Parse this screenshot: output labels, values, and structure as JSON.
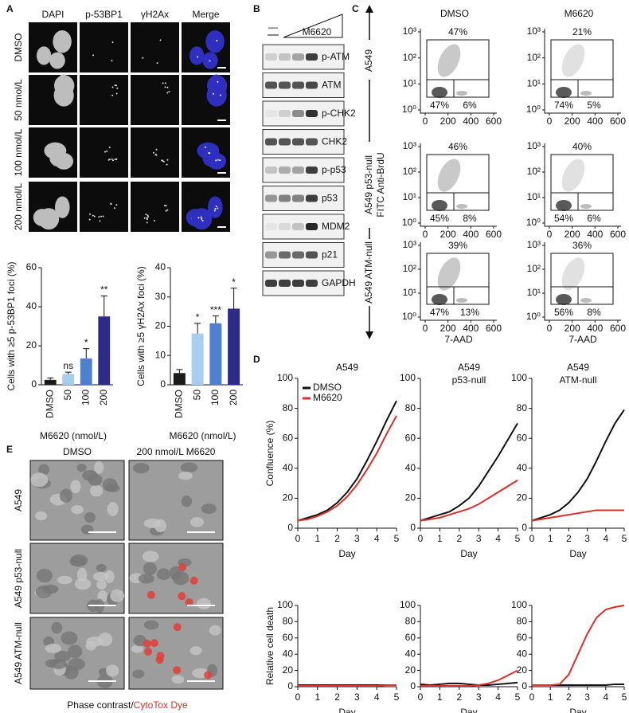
{
  "panel_labels": [
    "A",
    "B",
    "C",
    "D",
    "E"
  ],
  "panel_a": {
    "columns": [
      {
        "text": "DAPI",
        "color": "#5a55b8"
      },
      {
        "text": "p-53BP1",
        "color": "#e0504a"
      },
      {
        "text": "γH2Ax",
        "color": "#2e9e4f"
      },
      {
        "text": "Merge",
        "color": "#222222"
      }
    ],
    "rows": [
      "DMSO",
      "50 nmol/L",
      "100 nmol/L",
      "200 nmol/L"
    ]
  },
  "panel_b": {
    "control": "—",
    "treatment": "M6620",
    "proteins": [
      "p-ATM",
      "ATM",
      "p-CHK2",
      "CHK2",
      "p-p53",
      "p53",
      "MDM2",
      "p21",
      "GAPDH"
    ]
  },
  "panel_c": {
    "columns": [
      "DMSO",
      "M6620"
    ],
    "rows": [
      "A549",
      "A549 p53-null",
      "A549 ATM-null"
    ],
    "y_label": "FITC Anti-BrdU",
    "x_label": "7-AAD",
    "xticks": [
      "0",
      "200",
      "400",
      "600"
    ],
    "yticks": [
      "10⁰",
      "10¹",
      "10²",
      "10³"
    ],
    "gates": [
      [
        [
          "47%",
          "47%",
          "6%"
        ],
        [
          "21%",
          "74%",
          "5%"
        ]
      ],
      [
        [
          "46%",
          "45%",
          "8%"
        ],
        [
          "40%",
          "54%",
          "6%"
        ]
      ],
      [
        [
          "39%",
          "47%",
          "13%"
        ],
        [
          "36%",
          "56%",
          "8%"
        ]
      ]
    ]
  },
  "panel_e": {
    "columns": [
      "DMSO",
      "200 nmol/L M6620"
    ],
    "rows": [
      "A549",
      "A549 p53-null",
      "A549 ATM-null"
    ],
    "caption": [
      "Phase contrast/",
      "CytoTox Dye"
    ],
    "caption_colors": [
      "#111111",
      "#d9302c"
    ]
  },
  "chart_data": [
    {
      "type": "bar",
      "y_label": "Cells with ≥5 p-53BP1 foci (%)",
      "x_label": "M6620 (nmol/L)",
      "categories": [
        "DMSO",
        "50",
        "100",
        "200"
      ],
      "values": [
        2.5,
        5.5,
        13.5,
        35
      ],
      "errors": [
        1,
        1,
        5,
        10.5
      ],
      "annotations": [
        null,
        "ns",
        "*",
        "**"
      ],
      "colors": [
        "#1a1a1a",
        "#a9cdee",
        "#4f7fd0",
        "#2e2a8a"
      ],
      "ylim": [
        0,
        60
      ],
      "yticks": [
        0,
        20,
        40,
        60
      ]
    },
    {
      "type": "bar",
      "y_label": "Cells with ≥5 γH2Ax foci (%)",
      "x_label": "M6620 (nmol/L)",
      "categories": [
        "DMSO",
        "50",
        "100",
        "200"
      ],
      "values": [
        4,
        17.5,
        21,
        26
      ],
      "errors": [
        1.2,
        3.5,
        2.5,
        7
      ],
      "annotations": [
        null,
        "*",
        "***",
        "*"
      ],
      "colors": [
        "#1a1a1a",
        "#a9cdee",
        "#4f7fd0",
        "#2e2a8a"
      ],
      "ylim": [
        0,
        40
      ],
      "yticks": [
        0,
        10,
        20,
        30,
        40
      ]
    },
    {
      "type": "line",
      "title": [
        "A549"
      ],
      "y_label": "Confluence (%)",
      "x_label": "Day",
      "legend": true,
      "x": [
        0,
        0.5,
        1,
        1.5,
        2,
        2.5,
        3,
        3.5,
        4,
        4.5,
        5
      ],
      "xlim": [
        0,
        5
      ],
      "xticks": [
        0,
        1,
        2,
        3,
        4,
        5
      ],
      "ylim": [
        0,
        100
      ],
      "yticks": [
        0,
        20,
        40,
        60,
        80,
        100
      ],
      "series": [
        {
          "name": "DMSO",
          "color": "#111111",
          "values": [
            5,
            7,
            9,
            12,
            17,
            24,
            33,
            45,
            58,
            72,
            85
          ]
        },
        {
          "name": "M6620",
          "color": "#d9302c",
          "values": [
            5,
            6,
            8,
            11,
            15,
            21,
            29,
            39,
            50,
            63,
            75
          ]
        }
      ]
    },
    {
      "type": "line",
      "title": [
        "A549",
        "p53-null"
      ],
      "x_label": "Day",
      "legend": false,
      "x": [
        0,
        0.5,
        1,
        1.5,
        2,
        2.5,
        3,
        3.5,
        4,
        4.5,
        5
      ],
      "xlim": [
        0,
        5
      ],
      "xticks": [
        0,
        1,
        2,
        3,
        4,
        5
      ],
      "ylim": [
        0,
        100
      ],
      "yticks": [
        0,
        20,
        40,
        60,
        80,
        100
      ],
      "series": [
        {
          "color": "#111111",
          "values": [
            5,
            7,
            9,
            11,
            15,
            20,
            28,
            38,
            48,
            59,
            70
          ]
        },
        {
          "color": "#d9302c",
          "values": [
            5,
            6,
            7,
            9,
            11,
            13,
            16,
            20,
            24,
            28,
            32
          ]
        }
      ]
    },
    {
      "type": "line",
      "title": [
        "A549",
        "ATM-null"
      ],
      "x_label": "Day",
      "legend": false,
      "x": [
        0,
        0.5,
        1,
        1.5,
        2,
        2.5,
        3,
        3.5,
        4,
        4.5,
        5
      ],
      "xlim": [
        0,
        5
      ],
      "xticks": [
        0,
        1,
        2,
        3,
        4,
        5
      ],
      "ylim": [
        0,
        100
      ],
      "yticks": [
        0,
        20,
        40,
        60,
        80,
        100
      ],
      "series": [
        {
          "color": "#111111",
          "values": [
            5,
            7,
            9,
            12,
            17,
            24,
            33,
            45,
            58,
            70,
            79
          ]
        },
        {
          "color": "#d9302c",
          "values": [
            5,
            6,
            7,
            8,
            9,
            10,
            11,
            12,
            12,
            12,
            12
          ]
        }
      ]
    },
    {
      "type": "line",
      "y_label": "Relative cell death",
      "x_label": "Day",
      "legend": false,
      "x": [
        0,
        0.5,
        1,
        1.5,
        2,
        2.5,
        3,
        3.5,
        4,
        4.5,
        5
      ],
      "xlim": [
        0,
        5
      ],
      "xticks": [
        0,
        1,
        2,
        3,
        4,
        5
      ],
      "ylim": [
        0,
        100
      ],
      "yticks": [
        0,
        20,
        40,
        60,
        80,
        100
      ],
      "series": [
        {
          "color": "#111111",
          "values": [
            2,
            2,
            2,
            2,
            2,
            2,
            2,
            2,
            2,
            2,
            2
          ]
        },
        {
          "color": "#d9302c",
          "values": [
            1,
            1,
            1,
            1,
            1,
            1,
            1,
            1,
            1,
            2,
            2
          ]
        }
      ]
    },
    {
      "type": "line",
      "x_label": "Day",
      "legend": false,
      "x": [
        0,
        0.5,
        1,
        1.5,
        2,
        2.5,
        3,
        3.5,
        4,
        4.5,
        5
      ],
      "xlim": [
        0,
        5
      ],
      "xticks": [
        0,
        1,
        2,
        3,
        4,
        5
      ],
      "ylim": [
        0,
        100
      ],
      "yticks": [
        0,
        20,
        40,
        60,
        80,
        100
      ],
      "series": [
        {
          "color": "#111111",
          "values": [
            3,
            2,
            3,
            4,
            4,
            3,
            2,
            2,
            3,
            4,
            5
          ]
        },
        {
          "color": "#d9302c",
          "values": [
            1,
            1,
            1,
            1,
            1,
            1,
            2,
            4,
            8,
            14,
            20
          ]
        }
      ]
    },
    {
      "type": "line",
      "x_label": "Day",
      "legend": false,
      "x": [
        0,
        0.5,
        1,
        1.5,
        2,
        2.5,
        3,
        3.5,
        4,
        4.5,
        5
      ],
      "xlim": [
        0,
        5
      ],
      "xticks": [
        0,
        1,
        2,
        3,
        4,
        5
      ],
      "ylim": [
        0,
        100
      ],
      "yticks": [
        0,
        20,
        40,
        60,
        80,
        100
      ],
      "series": [
        {
          "color": "#111111",
          "values": [
            2,
            2,
            2,
            2,
            2,
            2,
            2,
            2,
            2,
            3,
            3
          ]
        },
        {
          "color": "#d9302c",
          "values": [
            2,
            2,
            2,
            3,
            15,
            40,
            65,
            85,
            95,
            98,
            100
          ]
        }
      ]
    }
  ]
}
